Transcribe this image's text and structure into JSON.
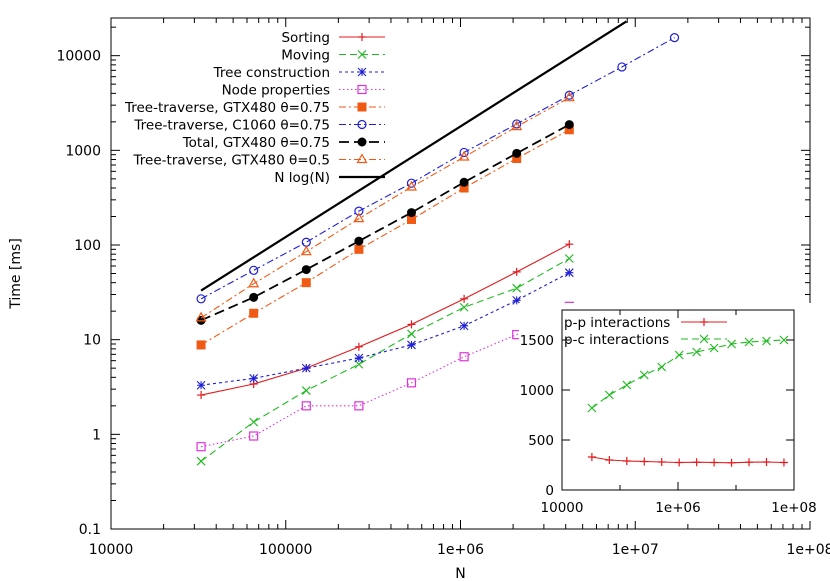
{
  "chart_data": [
    {
      "type": "line",
      "title": "",
      "xlabel": "N",
      "ylabel": "Time [ms]",
      "xscale": "log",
      "yscale": "log",
      "xlim": [
        10000,
        100000000
      ],
      "ylim": [
        0.1,
        25000
      ],
      "x_tick_labels": [
        "10000",
        "100000",
        "1e+06",
        "1e+07",
        "1e+08"
      ],
      "y_tick_labels": [
        "0.1",
        "1",
        "10",
        "100",
        "1000",
        "10000"
      ],
      "grid": false,
      "legend_position": "top-left",
      "series": [
        {
          "name": "Sorting",
          "color": "#e41a1c",
          "marker": "plus",
          "dash": "solid",
          "x": [
            32768,
            65536,
            131072,
            262144,
            524288,
            1048576,
            2097152,
            4194304
          ],
          "y": [
            2.6,
            3.4,
            5.0,
            8.4,
            14.5,
            27,
            52,
            102
          ]
        },
        {
          "name": "Moving",
          "color": "#22bb22",
          "marker": "cross",
          "dash": "dashed",
          "x": [
            32768,
            65536,
            131072,
            262144,
            524288,
            1048576,
            2097152,
            4194304
          ],
          "y": [
            0.52,
            1.35,
            2.9,
            5.5,
            11.5,
            22,
            35,
            72
          ]
        },
        {
          "name": "Tree construction",
          "color": "#1f1fd6",
          "marker": "star",
          "dash": "dotted",
          "x": [
            32768,
            65536,
            131072,
            262144,
            524288,
            1048576,
            2097152,
            4194304
          ],
          "y": [
            3.3,
            3.9,
            5.0,
            6.4,
            8.8,
            14,
            26,
            51
          ]
        },
        {
          "name": "Node properties",
          "color": "#dd33dd",
          "marker": "open-square",
          "dash": "fine-dotted",
          "x": [
            32768,
            65536,
            131072,
            262144,
            524288,
            1048576,
            2097152,
            4194304
          ],
          "y": [
            0.74,
            0.96,
            2.0,
            2.0,
            3.5,
            6.6,
            11.3,
            22.5
          ]
        },
        {
          "name": "Tree-traverse, GTX480 θ=0.75",
          "color": "#f15a14",
          "marker": "filled-square",
          "dash": "dashdot",
          "x": [
            32768,
            65536,
            131072,
            262144,
            524288,
            1048576,
            2097152,
            4194304
          ],
          "y": [
            8.8,
            19,
            40,
            90,
            186,
            400,
            820,
            1650
          ]
        },
        {
          "name": "Tree-traverse, C1060 θ=0.75",
          "color": "#1f1fd6",
          "marker": "open-circle",
          "dash": "dashdot",
          "x": [
            32768,
            65536,
            131072,
            262144,
            524288,
            1048576,
            2097152,
            4194304,
            8388608,
            16777216
          ],
          "y": [
            27,
            54,
            107,
            228,
            450,
            950,
            1900,
            3820,
            7600,
            15500
          ]
        },
        {
          "name": "Total, GTX480 θ=0.75",
          "color": "#000000",
          "marker": "filled-circle",
          "dash": "longdash",
          "x": [
            32768,
            65536,
            131072,
            262144,
            524288,
            1048576,
            2097152,
            4194304
          ],
          "y": [
            16,
            28,
            55,
            110,
            220,
            460,
            930,
            1870
          ]
        },
        {
          "name": "Tree-traverse, GTX480 θ=0.5",
          "color": "#f15a14",
          "marker": "open-triangle",
          "dash": "dashdot",
          "x": [
            32768,
            65536,
            131072,
            262144,
            524288,
            1048576,
            2097152,
            4194304
          ],
          "y": [
            17,
            39,
            85,
            190,
            410,
            850,
            1780,
            3600
          ]
        },
        {
          "name": "N log(N)",
          "color": "#000000",
          "marker": "none",
          "dash": "solid-thick",
          "x": [
            32768,
            8900000
          ],
          "y": [
            33,
            23000
          ]
        }
      ]
    },
    {
      "type": "line",
      "title": "",
      "xscale": "log",
      "yscale": "linear",
      "xlim": [
        10000,
        100000000
      ],
      "ylim": [
        0,
        1800
      ],
      "x_tick_labels": [
        "10000",
        "1e+06",
        "1e+08"
      ],
      "y_tick_labels": [
        "0",
        "500",
        "1000",
        "1500"
      ],
      "legend_position": "top-left",
      "series": [
        {
          "name": "p-p interactions",
          "color": "#e41a1c",
          "marker": "plus",
          "dash": "solid",
          "x": [
            32768,
            65536,
            131072,
            262144,
            524288,
            1048576,
            2097152,
            4194304,
            8388608,
            16777216,
            33554432,
            67108864
          ],
          "y": [
            330,
            300,
            290,
            285,
            280,
            275,
            278,
            275,
            272,
            278,
            280,
            275
          ]
        },
        {
          "name": "p-c interactions",
          "color": "#22bb22",
          "marker": "cross",
          "dash": "dashed",
          "x": [
            32768,
            65536,
            131072,
            262144,
            524288,
            1048576,
            2097152,
            4194304,
            8388608,
            16777216,
            33554432,
            67108864
          ],
          "y": [
            820,
            950,
            1050,
            1150,
            1230,
            1350,
            1380,
            1420,
            1460,
            1480,
            1490,
            1500
          ]
        }
      ]
    }
  ]
}
